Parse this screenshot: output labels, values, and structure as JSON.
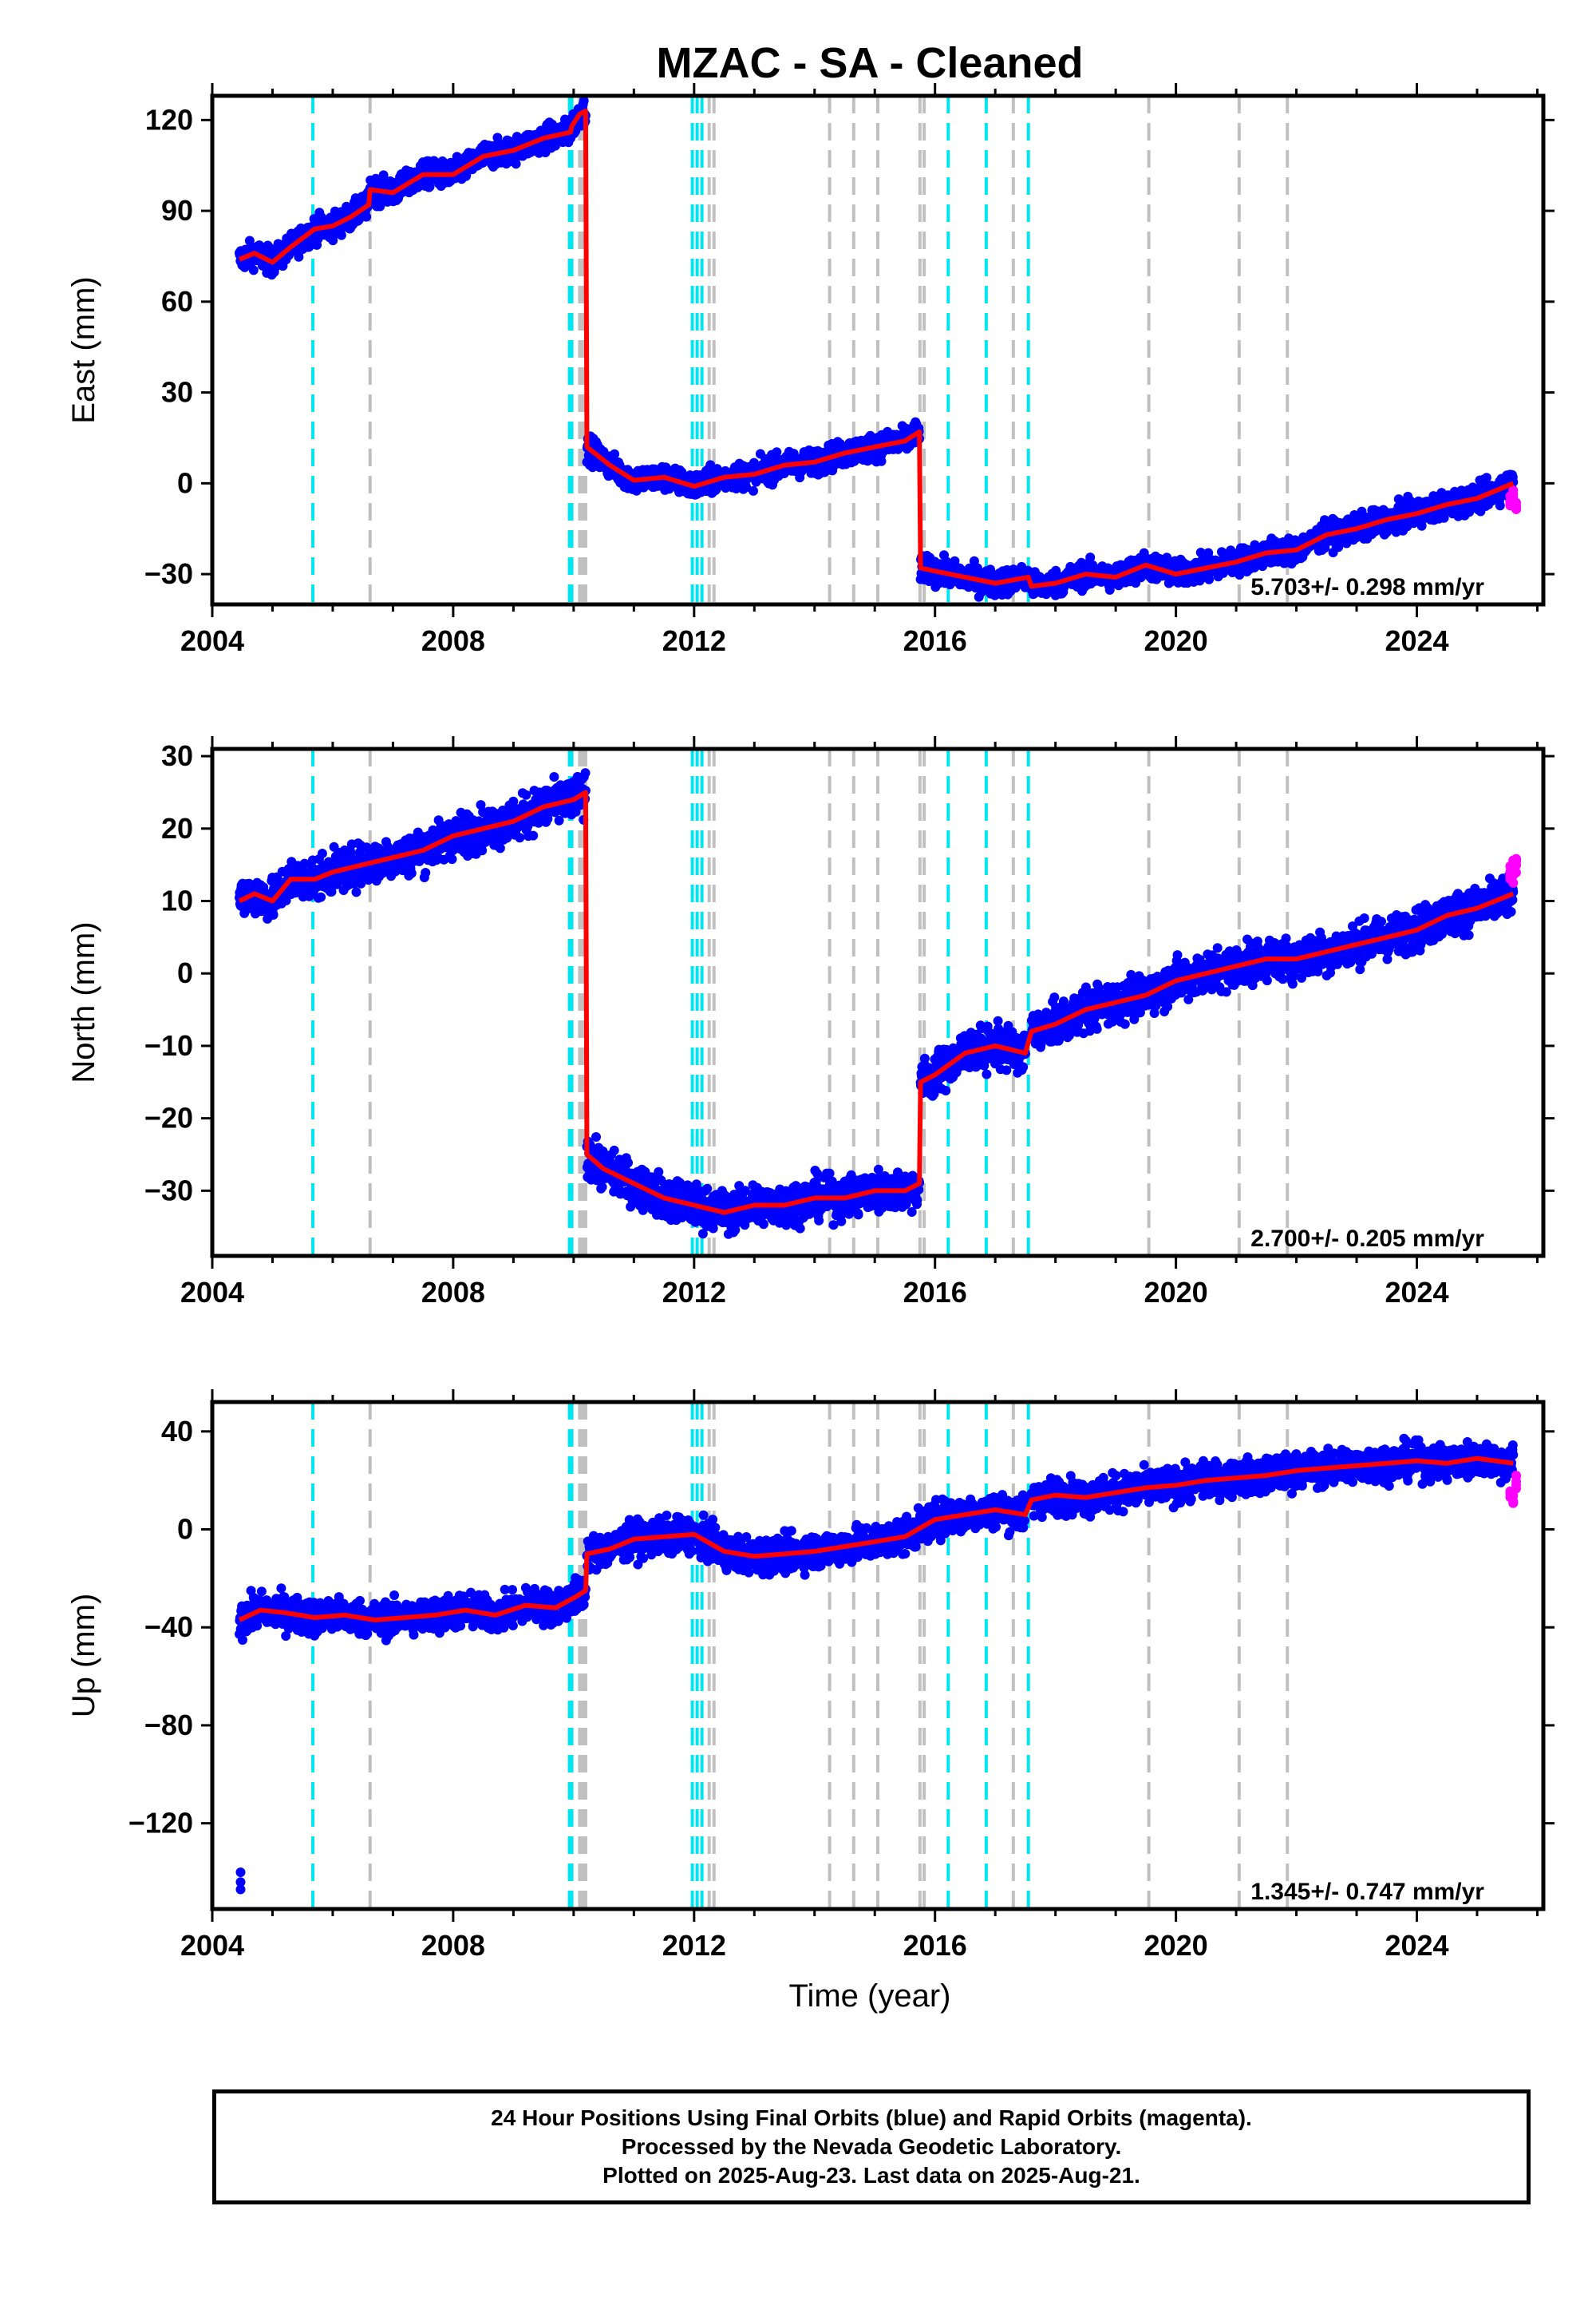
{
  "chart_data": {
    "type": "scatter",
    "title": "MZAC  - SA - Cleaned",
    "xlabel": "Time (year)",
    "xlim": [
      2004.0,
      2026.1
    ],
    "xticks": [
      2004,
      2008,
      2012,
      2016,
      2020,
      2024
    ],
    "legend": "none",
    "colors": {
      "final_orbits": "#0000ff",
      "rapid_orbits": "#ff00ff",
      "model": "#ff0000",
      "equipment_change": "#00e5ee",
      "earthquake": "#c0c0c0"
    },
    "equipment_changes": [
      2005.67,
      2009.93,
      2009.97,
      2011.97,
      2012.05,
      2012.13,
      2016.22,
      2016.85,
      2017.55
    ],
    "earthquakes": [
      2006.62,
      2010.1,
      2010.15,
      2010.2,
      2012.25,
      2012.33,
      2014.25,
      2014.65,
      2015.05,
      2015.75,
      2015.82,
      2017.3,
      2019.55,
      2021.05,
      2021.85
    ],
    "panels": [
      {
        "name": "East",
        "ylabel": "East (mm)",
        "ylim": [
          -40,
          128
        ],
        "yticks": [
          120,
          90,
          60,
          30,
          0,
          -30
        ],
        "rate": "5.703+/- 0.298 mm/yr",
        "noise": 3,
        "segments": [
          {
            "x": [
              2004.45,
              2004.7,
              2005.0,
              2005.3,
              2005.7,
              2006.0,
              2006.3,
              2006.6
            ],
            "y": [
              74,
              76,
              73,
              78,
              84,
              85,
              88,
              92
            ]
          },
          {
            "x": [
              2006.62,
              2007.0,
              2007.5,
              2008.0,
              2008.5,
              2009.0,
              2009.5,
              2009.95
            ],
            "y": [
              97,
              96,
              102,
              102,
              108,
              110,
              114,
              116
            ]
          },
          {
            "x": [
              2009.97,
              2010.1,
              2010.2
            ],
            "y": [
              118,
              122,
              123
            ]
          },
          {
            "x": [
              2010.22,
              2010.6,
              2011.0,
              2011.5,
              2012.0,
              2012.5,
              2013.0,
              2013.5,
              2014.0,
              2014.5,
              2015.0,
              2015.5,
              2015.74
            ],
            "y": [
              12,
              6,
              1,
              2,
              -1,
              2,
              3,
              6,
              7,
              10,
              12,
              14,
              17
            ]
          },
          {
            "x": [
              2015.76,
              2016.0,
              2016.5,
              2017.0,
              2017.55
            ],
            "y": [
              -28,
              -29,
              -31,
              -33,
              -31
            ]
          },
          {
            "x": [
              2017.6,
              2018.0,
              2018.5,
              2019.0,
              2019.5,
              2020.0,
              2020.5,
              2021.0,
              2021.5,
              2022.0,
              2022.5,
              2023.0,
              2023.5,
              2024.0,
              2024.5,
              2025.0,
              2025.6
            ],
            "y": [
              -34,
              -33,
              -30,
              -31,
              -27,
              -30,
              -28,
              -26,
              -23,
              -22,
              -17,
              -15,
              -12,
              -10,
              -7,
              -5,
              0
            ]
          }
        ],
        "rapid": {
          "x": [
            2025.55,
            2025.6,
            2025.65
          ],
          "y": [
            -5,
            -3,
            -7
          ]
        }
      },
      {
        "name": "North",
        "ylabel": "North (mm)",
        "ylim": [
          -39,
          31
        ],
        "yticks": [
          30,
          20,
          10,
          0,
          -10,
          -20,
          -30
        ],
        "rate": "2.700+/- 0.205 mm/yr",
        "noise": 2,
        "segments": [
          {
            "x": [
              2004.45,
              2004.7,
              2005.0,
              2005.3,
              2005.7,
              2006.0,
              2006.5,
              2007.0,
              2007.5,
              2008.0,
              2008.5,
              2009.0,
              2009.5,
              2010.0,
              2010.2
            ],
            "y": [
              10,
              11,
              10,
              13,
              13,
              14,
              15,
              16,
              17,
              19,
              20,
              21,
              23,
              24,
              25
            ]
          },
          {
            "x": [
              2010.22,
              2010.5,
              2011.0,
              2011.5,
              2012.0,
              2012.5,
              2013.0,
              2013.5,
              2014.0,
              2014.5,
              2015.0,
              2015.5,
              2015.74
            ],
            "y": [
              -25,
              -27,
              -29,
              -31,
              -32,
              -33,
              -32,
              -32,
              -31,
              -31,
              -30,
              -30,
              -29
            ]
          },
          {
            "x": [
              2015.76,
              2016.0,
              2016.5,
              2017.0,
              2017.5
            ],
            "y": [
              -15,
              -14,
              -11,
              -10,
              -11
            ]
          },
          {
            "x": [
              2017.6,
              2018.0,
              2018.5,
              2019.0,
              2019.5,
              2020.0,
              2020.5,
              2021.0,
              2021.5,
              2022.0,
              2022.5,
              2023.0,
              2023.5,
              2024.0,
              2024.5,
              2025.0,
              2025.6
            ],
            "y": [
              -8,
              -7,
              -5,
              -4,
              -3,
              -1,
              0,
              1,
              2,
              2,
              3,
              4,
              5,
              6,
              8,
              9,
              11
            ]
          }
        ],
        "rapid": {
          "x": [
            2025.55,
            2025.6,
            2025.65
          ],
          "y": [
            13,
            14,
            15
          ]
        }
      },
      {
        "name": "Up",
        "ylabel": "Up (mm)",
        "ylim": [
          -155,
          52
        ],
        "yticks": [
          40,
          0,
          -40,
          -80,
          -120
        ],
        "rate": "1.345+/- 0.747 mm/yr",
        "noise": 5,
        "segments": [
          {
            "x": [
              2004.45,
              2004.8,
              2005.2,
              2005.7,
              2006.2,
              2006.7,
              2007.2,
              2007.7,
              2008.2,
              2008.7,
              2009.2,
              2009.7,
              2010.0,
              2010.2
            ],
            "y": [
              -37,
              -33,
              -34,
              -36,
              -35,
              -37,
              -36,
              -35,
              -33,
              -35,
              -31,
              -32,
              -28,
              -25
            ]
          },
          {
            "x": [
              2010.22,
              2010.6,
              2011.0,
              2011.5,
              2012.0,
              2012.5,
              2013.0,
              2013.5,
              2014.0,
              2014.5,
              2015.0,
              2015.5,
              2016.0,
              2016.5,
              2017.0,
              2017.5
            ],
            "y": [
              -10,
              -8,
              -4,
              -3,
              -2,
              -9,
              -11,
              -10,
              -9,
              -7,
              -5,
              -3,
              4,
              6,
              8,
              6
            ]
          },
          {
            "x": [
              2017.6,
              2018.0,
              2018.5,
              2019.0,
              2019.5,
              2020.0,
              2020.5,
              2021.0,
              2021.5,
              2022.0,
              2022.5,
              2023.0,
              2023.5,
              2024.0,
              2024.5,
              2025.0,
              2025.6
            ],
            "y": [
              12,
              14,
              13,
              15,
              17,
              18,
              20,
              21,
              22,
              24,
              25,
              26,
              27,
              28,
              27,
              29,
              27
            ]
          }
        ],
        "outliers": {
          "x": [
            2004.47,
            2004.47,
            2004.47
          ],
          "y": [
            -140,
            -144,
            -147
          ]
        },
        "rapid": {
          "x": [
            2025.55,
            2025.6,
            2025.65
          ],
          "y": [
            15,
            12,
            20
          ]
        }
      }
    ]
  },
  "footer": {
    "line1": "24 Hour Positions Using Final Orbits (blue) and Rapid Orbits (magenta).",
    "line2": "Processed by the Nevada Geodetic Laboratory.",
    "line3": "Plotted on 2025-Aug-23. Last data on 2025-Aug-21."
  }
}
